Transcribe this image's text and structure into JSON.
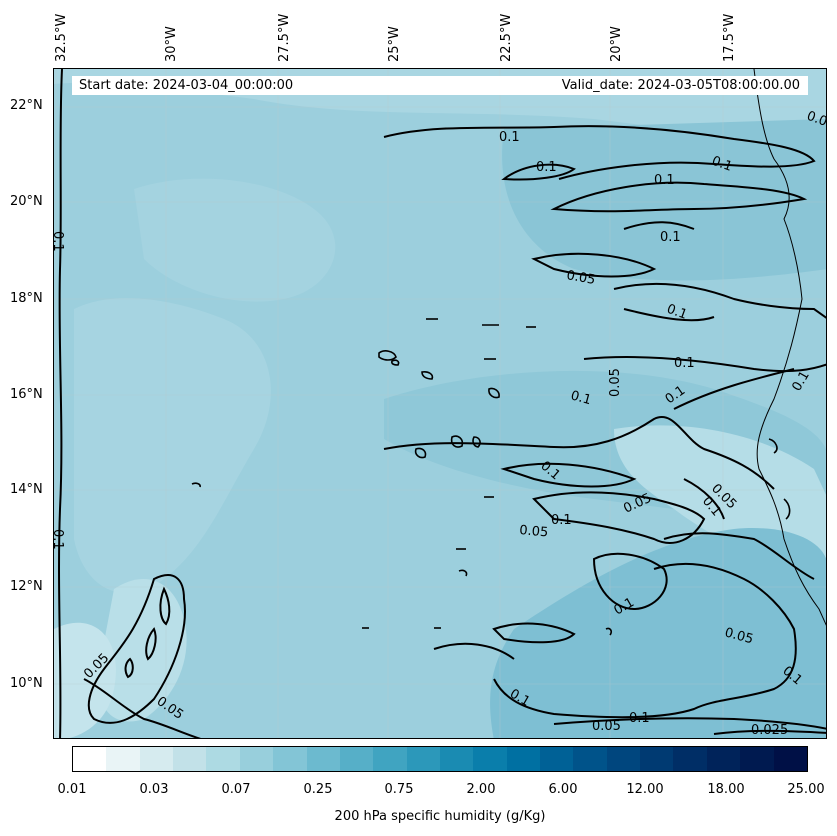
{
  "header": {
    "start_date": "Start date: 2024-03-04_00:00:00",
    "valid_date": "Valid_date: 2024-03-05T08:00:00.00"
  },
  "lon_labels": [
    "32.5°W",
    "30°W",
    "27.5°W",
    "25°W",
    "22.5°W",
    "20°W",
    "17.5°W"
  ],
  "lat_labels": [
    "22°N",
    "20°N",
    "18°N",
    "16°N",
    "14°N",
    "12°N",
    "10°N"
  ],
  "colorbar": {
    "title": "200 hPa specific humidity (g/Kg)",
    "ticks": [
      "0.01",
      "0.03",
      "0.07",
      "0.25",
      "0.75",
      "2.00",
      "6.00",
      "12.00",
      "18.00",
      "25.00"
    ],
    "colors": [
      "#ffffff",
      "#e9f4f6",
      "#d6ebef",
      "#c2e1e8",
      "#addae3",
      "#98cfdc",
      "#83c5d6",
      "#6cbacf",
      "#56afc8",
      "#40a4c1",
      "#2c98ba",
      "#1a8bb2",
      "#0a7eab",
      "#0070a2",
      "#006196",
      "#00538a",
      "#00467e",
      "#003a72",
      "#002e66",
      "#00235a",
      "#001a50",
      "#001046"
    ]
  },
  "contour_labels": [
    "0.1",
    "0.1",
    "0.1",
    "0.1",
    "0.1",
    "0.05",
    "0.1",
    "0.1",
    "0.05",
    "0.1",
    "0.1",
    "0.1",
    "0.1",
    "0.05",
    "0.1",
    "0.05",
    "0.1",
    "0.05",
    "0.1",
    "0.1",
    "0.05",
    "0.1",
    "0.05",
    "0.05",
    "0.1",
    "0.05",
    "0.1",
    "0.025",
    "0.1",
    "0.0"
  ]
}
